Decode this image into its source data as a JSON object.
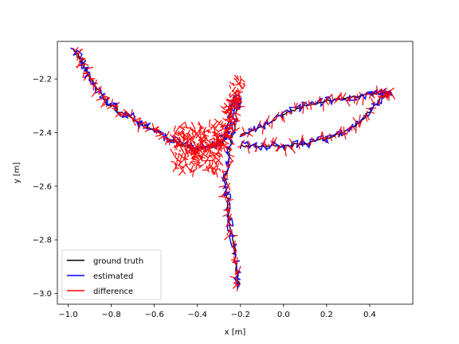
{
  "chart_data": {
    "type": "line",
    "title": "",
    "xlabel": "x [m]",
    "ylabel": "y [m]",
    "xlim": [
      -1.05,
      0.6
    ],
    "ylim": [
      -3.04,
      -2.06
    ],
    "xticks": [
      -1.0,
      -0.8,
      -0.6,
      -0.4,
      -0.2,
      0.0,
      0.2,
      0.4
    ],
    "xtick_labels": [
      "−1.0",
      "−0.8",
      "−0.6",
      "−0.4",
      "−0.2",
      "0.0",
      "0.2",
      "0.4"
    ],
    "yticks": [
      -3.0,
      -2.8,
      -2.6,
      -2.4,
      -2.2
    ],
    "ytick_labels": [
      "−3.0",
      "−2.8",
      "−2.6",
      "−2.4",
      "−2.2"
    ],
    "grid": false,
    "legend_position": "lower-left",
    "colors": {
      "ground_truth": "#000000",
      "estimated": "#0000ff",
      "difference": "#ff0000"
    },
    "series": [
      {
        "name": "ground truth",
        "x": [
          -0.97,
          -0.93,
          -0.88,
          -0.82,
          -0.74,
          -0.66,
          -0.58,
          -0.52,
          -0.45,
          -0.4,
          -0.34,
          -0.29,
          -0.26,
          -0.25,
          -0.22,
          -0.21,
          -0.25,
          -0.27,
          -0.26,
          -0.24,
          -0.22,
          -0.21
        ],
        "y": [
          -2.09,
          -2.15,
          -2.22,
          -2.29,
          -2.33,
          -2.37,
          -2.4,
          -2.43,
          -2.45,
          -2.46,
          -2.45,
          -2.44,
          -2.4,
          -2.32,
          -2.27,
          -2.3,
          -2.45,
          -2.58,
          -2.67,
          -2.78,
          -2.9,
          -2.98
        ]
      },
      {
        "name": "estimated",
        "x": [
          -0.97,
          -0.93,
          -0.88,
          -0.82,
          -0.74,
          -0.66,
          -0.58,
          -0.52,
          -0.45,
          -0.4,
          -0.34,
          -0.29,
          -0.26,
          -0.25,
          -0.22,
          -0.21,
          -0.25,
          -0.27,
          -0.26,
          -0.24,
          -0.22,
          -0.21
        ],
        "y": [
          -2.09,
          -2.15,
          -2.22,
          -2.29,
          -2.32,
          -2.37,
          -2.4,
          -2.44,
          -2.45,
          -2.47,
          -2.44,
          -2.44,
          -2.4,
          -2.31,
          -2.27,
          -2.3,
          -2.45,
          -2.58,
          -2.67,
          -2.78,
          -2.9,
          -2.99
        ]
      },
      {
        "name": "difference",
        "x": [
          -0.97,
          -0.93,
          -0.88,
          -0.82,
          -0.74,
          -0.66,
          -0.58,
          -0.52,
          -0.45,
          -0.4,
          -0.34,
          -0.29,
          -0.26,
          -0.25,
          -0.22,
          -0.21,
          -0.25,
          -0.27,
          -0.26,
          -0.24,
          -0.22,
          -0.21
        ],
        "y": [
          -2.09,
          -2.15,
          -2.22,
          -2.29,
          -2.33,
          -2.37,
          -2.4,
          -2.43,
          -2.45,
          -2.46,
          -2.45,
          -2.44,
          -2.4,
          -2.32,
          -2.27,
          -2.3,
          -2.45,
          -2.58,
          -2.67,
          -2.78,
          -2.9,
          -2.98
        ]
      }
    ],
    "loop": {
      "upper_x": [
        -0.2,
        -0.1,
        0.0,
        0.1,
        0.2,
        0.3,
        0.4,
        0.46,
        0.5
      ],
      "upper_y": [
        -2.41,
        -2.38,
        -2.33,
        -2.3,
        -2.28,
        -2.27,
        -2.26,
        -2.25,
        -2.25
      ],
      "lower_x": [
        0.5,
        0.44,
        0.36,
        0.28,
        0.2,
        0.1,
        0.0,
        -0.1,
        -0.2
      ],
      "lower_y": [
        -2.25,
        -2.28,
        -2.36,
        -2.4,
        -2.42,
        -2.44,
        -2.45,
        -2.45,
        -2.45
      ]
    },
    "legend": [
      "ground truth",
      "estimated",
      "difference"
    ]
  }
}
